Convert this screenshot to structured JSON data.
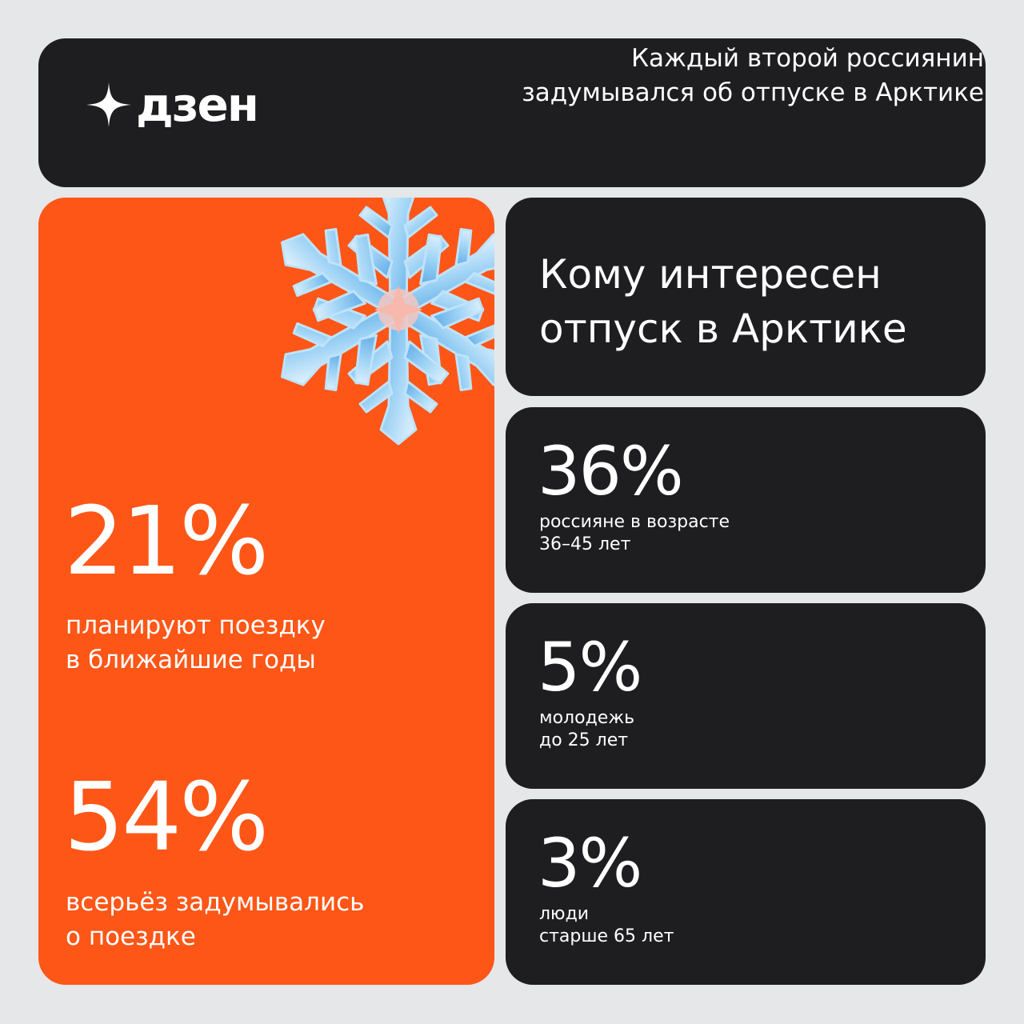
{
  "header": {
    "logo_text": "дзен",
    "title_line1": "Каждый второй россиянин",
    "title_line2": "задумывался об отпуске в Арктике"
  },
  "left_panel": {
    "stat1": {
      "value": "21%",
      "caption_line1": "планируют поездку",
      "caption_line2": "в ближайшие годы"
    },
    "stat2": {
      "value": "54%",
      "caption_line1": "всерьёз задумывались",
      "caption_line2": "о поездке"
    }
  },
  "right_panel": {
    "title_line1": "Кому интересен",
    "title_line2": "отпуск в Арктике",
    "stats": [
      {
        "value": "36%",
        "caption_line1": "россияне в возрасте",
        "caption_line2": "36–45 лет"
      },
      {
        "value": "5%",
        "caption_line1": "молодежь",
        "caption_line2": "до 25 лет"
      },
      {
        "value": "3%",
        "caption_line1": "люди",
        "caption_line2": "старше 65 лет"
      }
    ]
  },
  "colors": {
    "background": "#e6e7e9",
    "dark_card": "#1e1e21",
    "accent_orange": "#fd5617",
    "text": "#ffffff"
  },
  "icons": {
    "logo": "four-point-star-icon",
    "decoration": "snowflake-icon"
  }
}
